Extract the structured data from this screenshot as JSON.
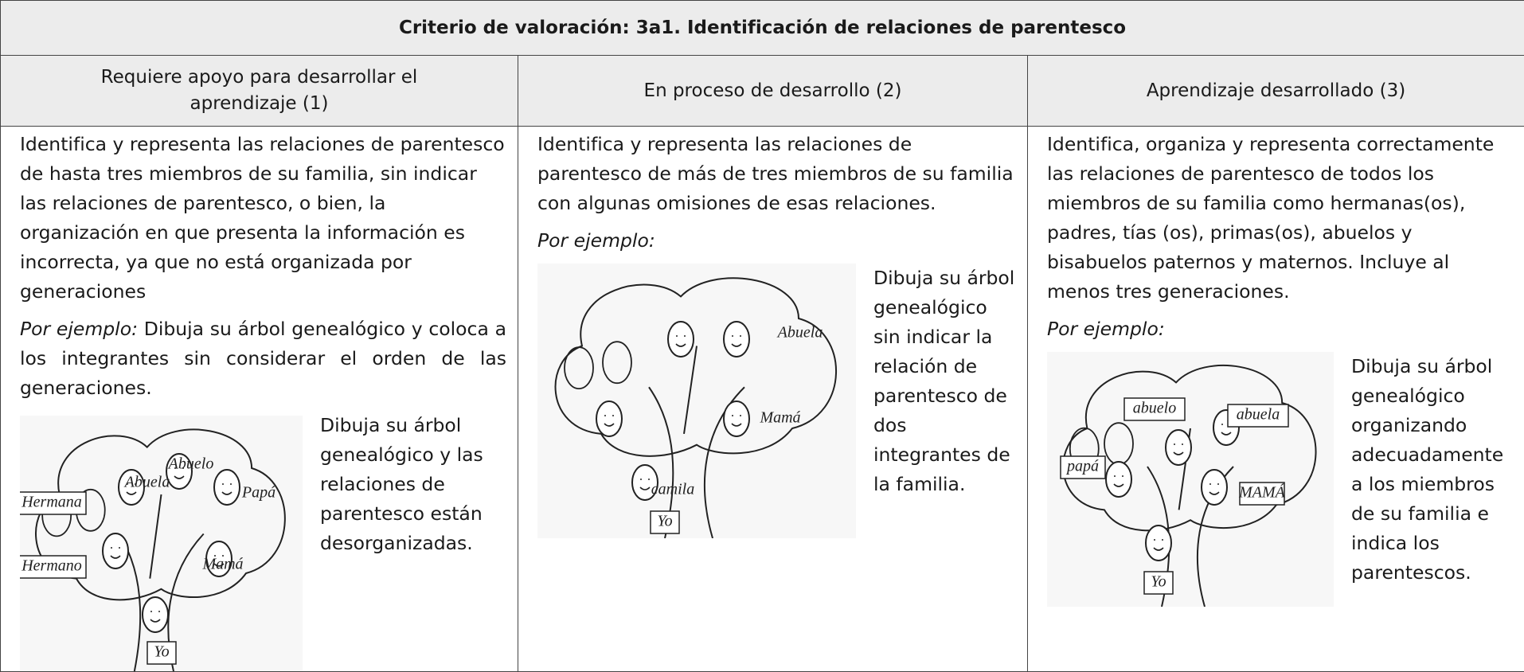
{
  "table": {
    "title": "Criterio de valoración: 3a1. Identificación de relaciones de parentesco",
    "headers": [
      "Requiere apoyo para desarrollar el aprendizaje (1)",
      "En proceso de desarrollo (2)",
      "Aprendizaje desarrollado (3)"
    ],
    "cells": [
      {
        "description": "Identifica y representa las relaciones de parentesco de hasta tres miembros de su familia, sin indicar las relaciones de parentesco, o bien, la organización en que presenta la información es incorrecta, ya que no está organizada por generaciones",
        "example_label": "Por ejemplo:",
        "example_text": "Dibuja su árbol genealógico y coloca a los integrantes sin considerar el orden de las generaciones.",
        "image_labels": [
          "Hermana",
          "Abuela",
          "Abuelo",
          "Papá",
          "Hermano",
          "Mamá",
          "Yo"
        ],
        "image_caption": "Dibuja su árbol genealógico y las relaciones de parentesco están desorganizadas."
      },
      {
        "description": "Identifica y representa las relaciones de parentesco de más de tres miembros de su familia con algunas omisiones de esas relaciones.",
        "example_label": "Por ejemplo:",
        "image_labels": [
          "Abuela",
          "Mamá",
          "camila",
          "Yo"
        ],
        "image_caption": "Dibuja su árbol genealógico sin indicar la relación de parentesco de dos integrantes de la familia."
      },
      {
        "description": "Identifica, organiza y representa correctamente las relaciones de parentesco de todos los miembros de su familia como hermanas(os), padres, tías (os), primas(os), abuelos y bisabuelos paternos y maternos. Incluye al menos tres generaciones.",
        "example_label": "Por ejemplo:",
        "image_labels": [
          "abuelo",
          "abuela",
          "papá",
          "MAMÁ",
          "Yo"
        ],
        "image_caption": "Dibuja su árbol genealógico organizando adecuadamente a los miembros de su familia e indica los parentescos."
      }
    ]
  }
}
